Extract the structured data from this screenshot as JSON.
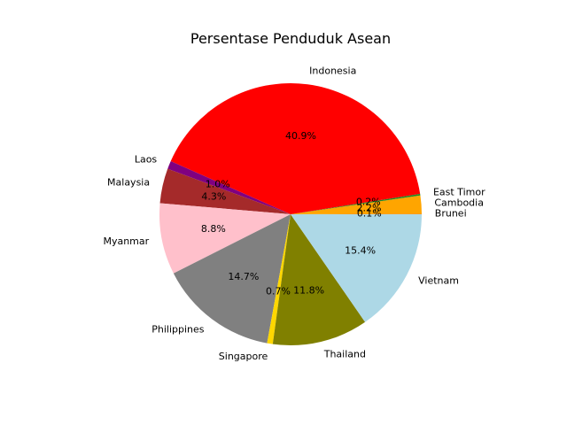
{
  "chart_data": {
    "type": "pie",
    "title": "Persentase Penduduk Asean",
    "start_angle": 0,
    "direction": "counterclockwise",
    "slices": [
      {
        "label": "Brunei",
        "value": 0.1,
        "pct_label": "0.1%",
        "color": "#ff8c00"
      },
      {
        "label": "Cambodia",
        "value": 2.2,
        "pct_label": "2.2%",
        "color": "#ffa500"
      },
      {
        "label": "East Timor",
        "value": 0.2,
        "pct_label": "0.2%",
        "color": "#228b22"
      },
      {
        "label": "Indonesia",
        "value": 40.9,
        "pct_label": "40.9%",
        "color": "#ff0000"
      },
      {
        "label": "Laos",
        "value": 1.0,
        "pct_label": "1.0%",
        "color": "#800080"
      },
      {
        "label": "Malaysia",
        "value": 4.3,
        "pct_label": "4.3%",
        "color": "#a52a2a"
      },
      {
        "label": "Myanmar",
        "value": 8.8,
        "pct_label": "8.8%",
        "color": "#ffc0cb"
      },
      {
        "label": "Philippines",
        "value": 14.7,
        "pct_label": "14.7%",
        "color": "#808080"
      },
      {
        "label": "Singapore",
        "value": 0.7,
        "pct_label": "0.7%",
        "color": "#ffd700"
      },
      {
        "label": "Thailand",
        "value": 11.8,
        "pct_label": "11.8%",
        "color": "#808000"
      },
      {
        "label": "Vietnam",
        "value": 15.4,
        "pct_label": "15.4%",
        "color": "#add8e6"
      }
    ]
  }
}
